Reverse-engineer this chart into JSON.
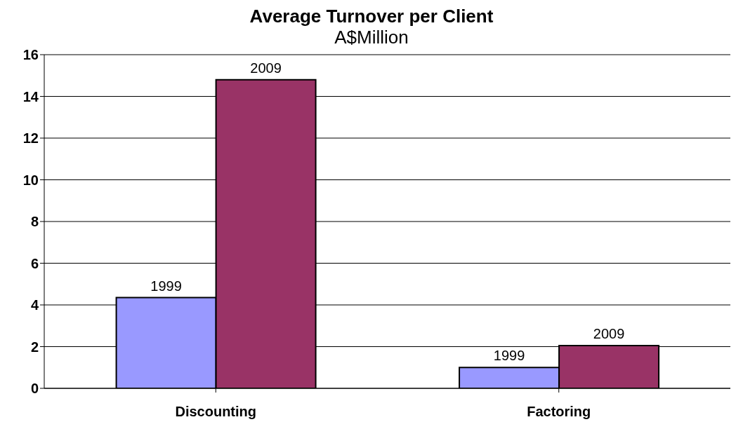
{
  "chart_data": {
    "type": "bar",
    "title": "Average Turnover per Client",
    "subtitle": "A$Million",
    "categories": [
      "Discounting",
      "Factoring"
    ],
    "series": [
      {
        "name": "1999",
        "color": "#9999ff",
        "values": [
          4.35,
          1.0
        ]
      },
      {
        "name": "2009",
        "color": "#993366",
        "values": [
          14.8,
          2.05
        ]
      }
    ],
    "ylim": [
      0,
      16
    ],
    "yticks": [
      0,
      2,
      4,
      6,
      8,
      10,
      12,
      14,
      16
    ],
    "grid": "y",
    "legend": false
  }
}
